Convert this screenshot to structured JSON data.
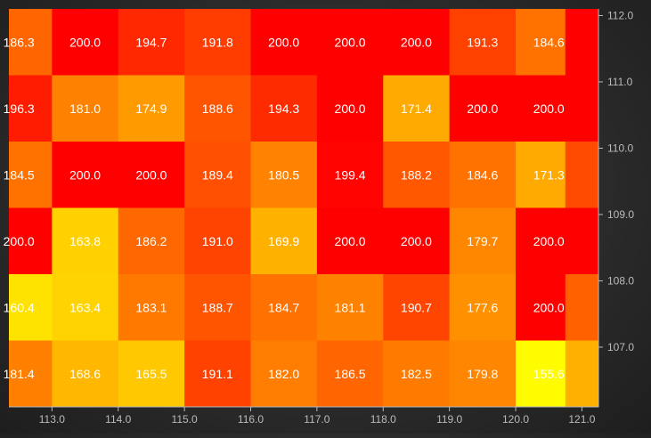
{
  "chart_data": {
    "type": "heatmap",
    "title": "",
    "xlabel": "",
    "ylabel": "",
    "x_ticks": [
      "113.0",
      "114.0",
      "115.0",
      "116.0",
      "117.0",
      "118.0",
      "119.0",
      "120.0",
      "121.0"
    ],
    "y_ticks": [
      "112.0",
      "111.0",
      "110.0",
      "109.0",
      "108.0",
      "107.0"
    ],
    "xlim": [
      112.35,
      121.25
    ],
    "ylim": [
      106.1,
      112.1
    ],
    "x_centers": [
      112.5,
      113.5,
      114.5,
      115.5,
      116.5,
      117.5,
      118.5,
      119.5,
      120.5,
      121.0
    ],
    "y_centers": [
      111.6,
      110.6,
      109.6,
      108.6,
      107.6,
      106.6
    ],
    "color_scale": {
      "min": 155.0,
      "max": 200.0,
      "stops": [
        "#ffff00",
        "#ffb000",
        "#ff7000",
        "#ff0000"
      ]
    },
    "rows": [
      {
        "y": 111.6,
        "values": [
          186.3,
          200.0,
          194.7,
          191.8,
          200.0,
          200.0,
          200.0,
          191.3,
          184.6,
          200.0
        ]
      },
      {
        "y": 110.6,
        "values": [
          196.3,
          181.0,
          174.9,
          188.6,
          194.3,
          200.0,
          171.4,
          200.0,
          200.0,
          200.0
        ]
      },
      {
        "y": 109.6,
        "values": [
          184.5,
          200.0,
          200.0,
          189.4,
          180.5,
          199.4,
          188.2,
          184.6,
          171.3,
          190.0
        ]
      },
      {
        "y": 108.6,
        "values": [
          200.0,
          163.8,
          186.2,
          191.0,
          169.9,
          200.0,
          200.0,
          179.7,
          200.0,
          200.0
        ]
      },
      {
        "y": 107.6,
        "values": [
          160.4,
          163.4,
          183.1,
          188.7,
          184.7,
          181.1,
          190.7,
          177.6,
          200.0,
          187.0
        ]
      },
      {
        "y": 106.6,
        "values": [
          181.4,
          168.6,
          165.5,
          191.1,
          182.0,
          186.5,
          182.5,
          179.8,
          155.6,
          170.0
        ]
      }
    ],
    "labeled_columns": 9,
    "top_sliver_values": [
      190.0,
      180.0,
      175.0,
      200.0,
      200.0,
      195.0,
      200.0,
      200.0,
      200.0,
      200.0
    ],
    "label_color": "#ffffff",
    "tick_color": "#bbbbbb",
    "axis_color": "#bbbbbb"
  }
}
